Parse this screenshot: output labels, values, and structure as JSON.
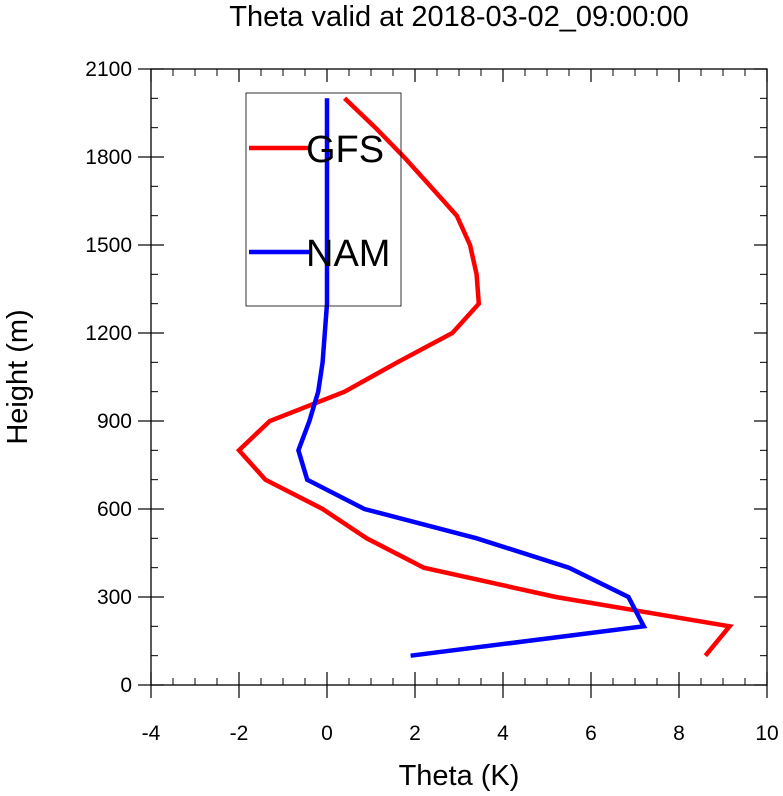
{
  "chart_data": {
    "type": "line",
    "title": "Theta valid at 2018-03-02_09:00:00",
    "xlabel": "Theta (K)",
    "ylabel": "Height (m)",
    "xlim": [
      -4,
      10
    ],
    "ylim": [
      0,
      2100
    ],
    "xticks": [
      -4,
      -2,
      0,
      2,
      4,
      6,
      8,
      10
    ],
    "yticks": [
      0,
      300,
      600,
      900,
      1200,
      1500,
      1800,
      2100
    ],
    "x_minor_step": 0.5,
    "y_minor_step": 100,
    "grid": false,
    "legend_position": "top-left",
    "series": [
      {
        "name": "GFS",
        "color": "#ff0000",
        "points": [
          [
            8.6,
            100
          ],
          [
            9.15,
            200
          ],
          [
            5.2,
            300
          ],
          [
            2.2,
            400
          ],
          [
            0.9,
            500
          ],
          [
            -0.1,
            600
          ],
          [
            -1.4,
            700
          ],
          [
            -2.0,
            800
          ],
          [
            -1.3,
            900
          ],
          [
            0.4,
            1000
          ],
          [
            1.6,
            1100
          ],
          [
            2.85,
            1200
          ],
          [
            3.45,
            1300
          ],
          [
            3.4,
            1400
          ],
          [
            3.25,
            1500
          ],
          [
            2.95,
            1600
          ],
          [
            2.35,
            1700
          ],
          [
            1.75,
            1800
          ],
          [
            1.1,
            1900
          ],
          [
            0.4,
            2000
          ]
        ]
      },
      {
        "name": "NAM",
        "color": "#0000ff",
        "points": [
          [
            1.9,
            100
          ],
          [
            7.2,
            200
          ],
          [
            6.85,
            300
          ],
          [
            5.5,
            400
          ],
          [
            3.4,
            500
          ],
          [
            0.85,
            600
          ],
          [
            -0.45,
            700
          ],
          [
            -0.65,
            800
          ],
          [
            -0.4,
            900
          ],
          [
            -0.2,
            1000
          ],
          [
            -0.1,
            1100
          ],
          [
            -0.05,
            1200
          ],
          [
            0.0,
            1300
          ],
          [
            0.0,
            1400
          ],
          [
            0.0,
            1500
          ],
          [
            0.0,
            1600
          ],
          [
            0.0,
            1700
          ],
          [
            0.0,
            1800
          ],
          [
            0.0,
            1900
          ],
          [
            0.0,
            2000
          ]
        ]
      }
    ]
  }
}
